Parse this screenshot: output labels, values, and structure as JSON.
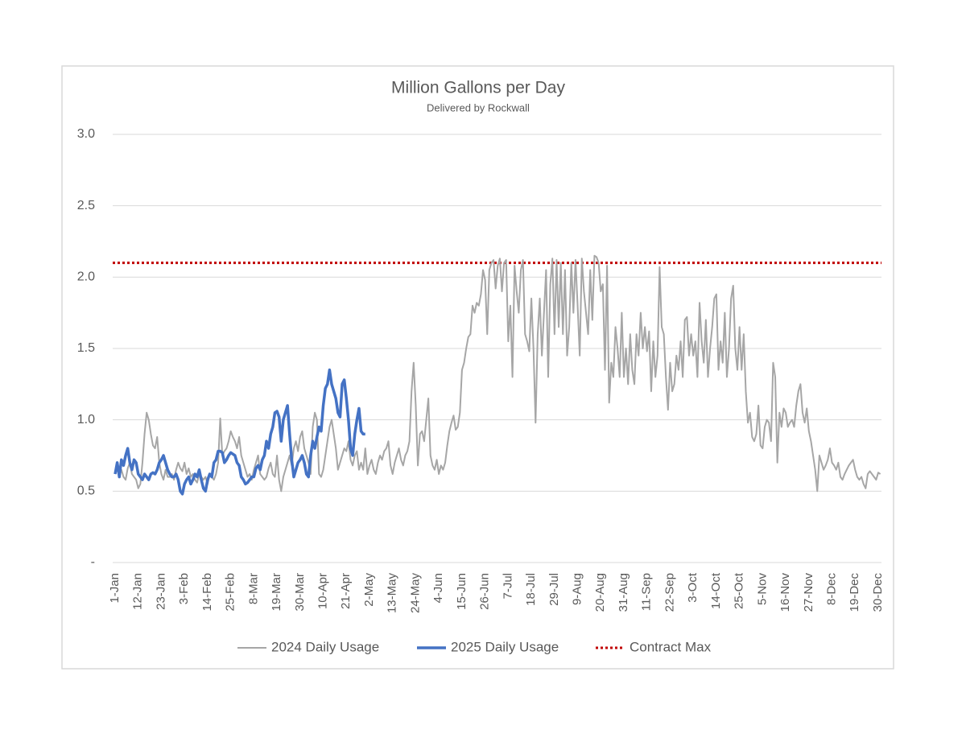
{
  "chart_data": {
    "type": "line",
    "title": "Million Gallons per Day",
    "subtitle": "Delivered by Rockwall",
    "categories": [
      "1-Jan",
      null,
      null,
      null,
      null,
      null,
      null,
      null,
      null,
      null,
      null,
      "12-Jan",
      null,
      null,
      null,
      null,
      null,
      null,
      null,
      null,
      null,
      null,
      "23-Jan",
      null,
      null,
      null,
      null,
      null,
      null,
      null,
      null,
      null,
      null,
      "3-Feb",
      null,
      null,
      null,
      null,
      null,
      null,
      null,
      null,
      null,
      null,
      "14-Feb",
      null,
      null,
      null,
      null,
      null,
      null,
      null,
      null,
      null,
      null,
      "25-Feb",
      null,
      null,
      null,
      null,
      null,
      null,
      null,
      null,
      null,
      null,
      "8-Mar",
      null,
      null,
      null,
      null,
      null,
      null,
      null,
      null,
      null,
      null,
      "19-Mar",
      null,
      null,
      null,
      null,
      null,
      null,
      null,
      null,
      null,
      null,
      "30-Mar",
      null,
      null,
      null,
      null,
      null,
      null,
      null,
      null,
      null,
      null,
      "10-Apr",
      null,
      null,
      null,
      null,
      null,
      null,
      null,
      null,
      null,
      null,
      "21-Apr",
      null,
      null,
      null,
      null,
      null,
      null,
      null,
      null,
      null,
      null,
      "2-May",
      null,
      null,
      null,
      null,
      null,
      null,
      null,
      null,
      null,
      null,
      "13-May",
      null,
      null,
      null,
      null,
      null,
      null,
      null,
      null,
      null,
      null,
      "24-May",
      null,
      null,
      null,
      null,
      null,
      null,
      null,
      null,
      null,
      null,
      "4-Jun",
      null,
      null,
      null,
      null,
      null,
      null,
      null,
      null,
      null,
      null,
      "15-Jun",
      null,
      null,
      null,
      null,
      null,
      null,
      null,
      null,
      null,
      null,
      "26-Jun",
      null,
      null,
      null,
      null,
      null,
      null,
      null,
      null,
      null,
      null,
      "7-Jul",
      null,
      null,
      null,
      null,
      null,
      null,
      null,
      null,
      null,
      null,
      "18-Jul",
      null,
      null,
      null,
      null,
      null,
      null,
      null,
      null,
      null,
      null,
      "29-Jul",
      null,
      null,
      null,
      null,
      null,
      null,
      null,
      null,
      null,
      null,
      "9-Aug",
      null,
      null,
      null,
      null,
      null,
      null,
      null,
      null,
      null,
      null,
      "20-Aug",
      null,
      null,
      null,
      null,
      null,
      null,
      null,
      null,
      null,
      null,
      "31-Aug",
      null,
      null,
      null,
      null,
      null,
      null,
      null,
      null,
      null,
      null,
      "11-Sep",
      null,
      null,
      null,
      null,
      null,
      null,
      null,
      null,
      null,
      null,
      "22-Sep",
      null,
      null,
      null,
      null,
      null,
      null,
      null,
      null,
      null,
      null,
      "3-Oct",
      null,
      null,
      null,
      null,
      null,
      null,
      null,
      null,
      null,
      null,
      "14-Oct",
      null,
      null,
      null,
      null,
      null,
      null,
      null,
      null,
      null,
      null,
      "25-Oct",
      null,
      null,
      null,
      null,
      null,
      null,
      null,
      null,
      null,
      null,
      "5-Nov",
      null,
      null,
      null,
      null,
      null,
      null,
      null,
      null,
      null,
      null,
      "16-Nov",
      null,
      null,
      null,
      null,
      null,
      null,
      null,
      null,
      null,
      null,
      "27-Nov",
      null,
      null,
      null,
      null,
      null,
      null,
      null,
      null,
      null,
      null,
      "8-Dec",
      null,
      null,
      null,
      null,
      null,
      null,
      null,
      null,
      null,
      null,
      "19-Dec",
      null,
      null,
      null,
      null,
      null,
      null,
      null,
      null,
      null,
      null,
      "30-Dec",
      null
    ],
    "series": [
      {
        "name": "2024 Daily Usage",
        "color": "#a6a6a6",
        "width": 2,
        "values": [
          0.62,
          0.68,
          0.6,
          0.65,
          0.6,
          0.58,
          0.66,
          0.7,
          0.62,
          0.6,
          0.58,
          0.52,
          0.55,
          0.7,
          0.9,
          1.05,
          1.0,
          0.9,
          0.82,
          0.8,
          0.88,
          0.7,
          0.62,
          0.58,
          0.65,
          0.6,
          0.6,
          0.62,
          0.58,
          0.65,
          0.7,
          0.66,
          0.64,
          0.7,
          0.62,
          0.66,
          0.6,
          0.62,
          0.58,
          0.56,
          0.62,
          0.6,
          0.58,
          0.6,
          0.55,
          0.62,
          0.6,
          0.58,
          0.62,
          0.7,
          1.01,
          0.75,
          0.78,
          0.8,
          0.85,
          0.92,
          0.88,
          0.85,
          0.8,
          0.88,
          0.75,
          0.7,
          0.65,
          0.6,
          0.62,
          0.58,
          0.65,
          0.7,
          0.75,
          0.62,
          0.6,
          0.58,
          0.6,
          0.66,
          0.7,
          0.62,
          0.6,
          0.75,
          0.58,
          0.5,
          0.6,
          0.65,
          0.7,
          0.75,
          0.68,
          0.8,
          0.85,
          0.78,
          0.88,
          0.92,
          0.8,
          0.75,
          0.7,
          0.62,
          0.95,
          1.05,
          1.0,
          0.62,
          0.6,
          0.65,
          0.75,
          0.85,
          0.95,
          1.0,
          0.9,
          0.8,
          0.65,
          0.7,
          0.75,
          0.8,
          0.78,
          0.85,
          0.72,
          0.68,
          0.75,
          0.78,
          0.65,
          0.7,
          0.65,
          0.8,
          0.62,
          0.68,
          0.72,
          0.65,
          0.62,
          0.7,
          0.75,
          0.72,
          0.78,
          0.8,
          0.85,
          0.68,
          0.62,
          0.7,
          0.75,
          0.8,
          0.72,
          0.68,
          0.75,
          0.78,
          0.85,
          1.2,
          1.4,
          1.1,
          0.68,
          0.9,
          0.92,
          0.85,
          1.0,
          1.15,
          0.75,
          0.68,
          0.65,
          0.72,
          0.62,
          0.68,
          0.65,
          0.7,
          0.82,
          0.92,
          0.98,
          1.03,
          0.93,
          0.95,
          1.05,
          1.35,
          1.4,
          1.5,
          1.58,
          1.6,
          1.8,
          1.75,
          1.82,
          1.8,
          1.88,
          2.05,
          1.98,
          1.6,
          2.05,
          2.1,
          2.12,
          1.92,
          2.08,
          2.13,
          1.9,
          2.1,
          2.12,
          1.55,
          1.8,
          1.3,
          2.08,
          1.9,
          1.75,
          2.05,
          2.12,
          1.6,
          1.55,
          1.48,
          1.85,
          1.5,
          0.98,
          1.6,
          1.85,
          1.45,
          1.75,
          2.05,
          1.3,
          1.95,
          2.13,
          1.6,
          2.12,
          1.65,
          2.1,
          1.6,
          2.05,
          1.45,
          1.65,
          2.1,
          1.75,
          2.12,
          1.8,
          1.45,
          2.13,
          1.9,
          1.75,
          1.6,
          2.05,
          1.7,
          2.15,
          2.14,
          2.1,
          1.9,
          1.95,
          1.35,
          2.08,
          1.12,
          1.4,
          1.3,
          1.65,
          1.5,
          1.3,
          1.75,
          1.3,
          1.5,
          1.25,
          1.6,
          1.35,
          1.25,
          1.6,
          1.45,
          1.75,
          1.5,
          1.65,
          1.48,
          1.62,
          1.2,
          1.55,
          1.3,
          1.45,
          2.07,
          1.65,
          1.6,
          1.3,
          1.07,
          1.4,
          1.2,
          1.25,
          1.45,
          1.35,
          1.55,
          1.3,
          1.7,
          1.72,
          1.45,
          1.6,
          1.45,
          1.55,
          1.3,
          1.82,
          1.55,
          1.4,
          1.7,
          1.3,
          1.5,
          1.65,
          1.85,
          1.88,
          1.35,
          1.55,
          1.4,
          1.75,
          1.3,
          1.5,
          1.85,
          1.94,
          1.5,
          1.35,
          1.65,
          1.35,
          1.6,
          1.2,
          0.98,
          1.05,
          0.88,
          0.85,
          0.9,
          1.1,
          0.82,
          0.8,
          0.95,
          1.0,
          0.98,
          0.85,
          1.4,
          1.3,
          0.7,
          1.05,
          0.95,
          1.08,
          1.05,
          0.95,
          0.98,
          1.0,
          0.95,
          1.1,
          1.2,
          1.25,
          1.05,
          0.98,
          1.08,
          0.92,
          0.85,
          0.75,
          0.65,
          0.5,
          0.75,
          0.7,
          0.65,
          0.68,
          0.72,
          0.8,
          0.7,
          0.68,
          0.65,
          0.7,
          0.6,
          0.58,
          0.62,
          0.65,
          0.68,
          0.7,
          0.72,
          0.65,
          0.6,
          0.58,
          0.6,
          0.55,
          0.52,
          0.62,
          0.64,
          0.62,
          0.6,
          0.58,
          0.63,
          0.62
        ]
      },
      {
        "name": "2025 Daily Usage",
        "color": "#4472c4",
        "width": 3.5,
        "values": [
          0.62,
          0.7,
          0.6,
          0.72,
          0.68,
          0.75,
          0.8,
          0.7,
          0.65,
          0.72,
          0.7,
          0.62,
          0.6,
          0.58,
          0.62,
          0.6,
          0.58,
          0.62,
          0.63,
          0.62,
          0.65,
          0.7,
          0.72,
          0.75,
          0.7,
          0.65,
          0.62,
          0.6,
          0.6,
          0.62,
          0.58,
          0.5,
          0.48,
          0.55,
          0.58,
          0.6,
          0.55,
          0.58,
          0.62,
          0.6,
          0.65,
          0.58,
          0.52,
          0.5,
          0.58,
          0.62,
          0.6,
          0.7,
          0.72,
          0.78,
          0.78,
          0.77,
          0.7,
          0.72,
          0.75,
          0.77,
          0.76,
          0.75,
          0.7,
          0.68,
          0.6,
          0.58,
          0.55,
          0.56,
          0.58,
          0.6,
          0.6,
          0.66,
          0.68,
          0.65,
          0.72,
          0.75,
          0.85,
          0.8,
          0.9,
          0.95,
          1.05,
          1.06,
          1.02,
          0.85,
          1.0,
          1.05,
          1.1,
          0.9,
          0.72,
          0.6,
          0.65,
          0.7,
          0.72,
          0.75,
          0.7,
          0.62,
          0.6,
          0.75,
          0.85,
          0.8,
          0.88,
          0.95,
          0.92,
          1.1,
          1.22,
          1.25,
          1.35,
          1.25,
          1.2,
          1.15,
          1.05,
          1.02,
          1.25,
          1.28,
          1.15,
          1.0,
          0.8,
          0.75,
          0.9,
          1.0,
          1.08,
          0.92,
          0.9,
          0.9,
          null,
          null,
          null,
          null,
          null,
          null,
          null,
          null,
          null,
          null,
          null,
          null,
          null,
          null,
          null,
          null,
          null,
          null,
          null,
          null,
          null,
          null,
          null,
          null,
          null,
          null,
          null,
          null,
          null,
          null,
          null,
          null,
          null,
          null,
          null,
          null,
          null,
          null,
          null,
          null,
          null,
          null,
          null,
          null,
          null,
          null,
          null,
          null,
          null,
          null,
          null,
          null,
          null,
          null,
          null,
          null,
          null,
          null,
          null,
          null,
          null,
          null,
          null,
          null,
          null,
          null,
          null,
          null,
          null,
          null,
          null,
          null,
          null,
          null,
          null,
          null,
          null,
          null,
          null,
          null,
          null,
          null,
          null,
          null,
          null,
          null,
          null,
          null,
          null,
          null,
          null,
          null,
          null,
          null,
          null,
          null,
          null,
          null,
          null,
          null,
          null,
          null,
          null,
          null,
          null,
          null,
          null,
          null,
          null,
          null,
          null,
          null,
          null,
          null,
          null,
          null,
          null,
          null,
          null,
          null,
          null,
          null,
          null,
          null,
          null,
          null,
          null,
          null,
          null,
          null,
          null,
          null,
          null,
          null,
          null,
          null,
          null,
          null,
          null,
          null,
          null,
          null,
          null,
          null,
          null,
          null,
          null,
          null,
          null,
          null,
          null,
          null,
          null,
          null,
          null,
          null,
          null,
          null,
          null,
          null,
          null,
          null,
          null,
          null,
          null,
          null,
          null,
          null,
          null,
          null,
          null,
          null,
          null,
          null,
          null,
          null,
          null,
          null,
          null,
          null,
          null,
          null,
          null,
          null,
          null,
          null,
          null,
          null,
          null,
          null,
          null,
          null,
          null,
          null,
          null,
          null,
          null,
          null,
          null,
          null,
          null,
          null,
          null,
          null,
          null,
          null,
          null,
          null,
          null,
          null,
          null,
          null,
          null,
          null,
          null,
          null,
          null,
          null,
          null,
          null,
          null,
          null,
          null,
          null,
          null,
          null,
          null,
          null,
          null,
          null,
          null,
          null,
          null,
          null,
          null,
          null,
          null,
          null,
          null,
          null,
          null,
          null,
          null,
          null,
          null
        ]
      }
    ],
    "reference_lines": [
      {
        "name": "Contract Max",
        "value": 2.1,
        "color": "#c00000",
        "style": "dotted"
      }
    ],
    "ylim": [
      0,
      3
    ],
    "yticks": [
      {
        "value": 0,
        "label": "-"
      },
      0.5,
      {
        "value": 1,
        "label": "1.0"
      },
      1.5,
      {
        "value": 2,
        "label": "2.0"
      },
      2.5,
      {
        "value": 3,
        "label": "3.0"
      }
    ],
    "grid": true,
    "legend": "bottom"
  }
}
